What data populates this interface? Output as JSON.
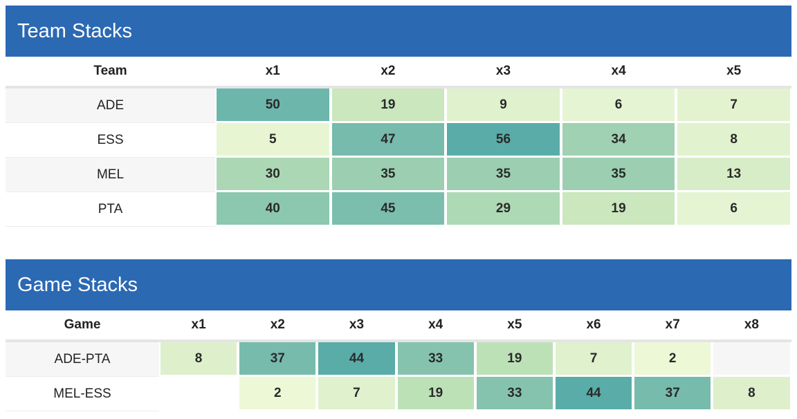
{
  "team_stacks": {
    "title": "Team Stacks",
    "first_header": "Team",
    "columns": [
      "x1",
      "x2",
      "x3",
      "x4",
      "x5"
    ],
    "rows": [
      {
        "label": "ADE",
        "values": [
          50,
          19,
          9,
          6,
          7
        ]
      },
      {
        "label": "ESS",
        "values": [
          5,
          47,
          56,
          34,
          8
        ]
      },
      {
        "label": "MEL",
        "values": [
          30,
          35,
          35,
          35,
          13
        ]
      },
      {
        "label": "PTA",
        "values": [
          40,
          45,
          29,
          19,
          6
        ]
      }
    ]
  },
  "game_stacks": {
    "title": "Game Stacks",
    "first_header": "Game",
    "columns": [
      "x1",
      "x2",
      "x3",
      "x4",
      "x5",
      "x6",
      "x7",
      "x8"
    ],
    "rows": [
      {
        "label": "ADE-PTA",
        "values": [
          8,
          37,
          44,
          33,
          19,
          7,
          2,
          null
        ]
      },
      {
        "label": "MEL-ESS",
        "values": [
          null,
          2,
          7,
          19,
          33,
          44,
          37,
          8
        ]
      }
    ]
  },
  "colors": {
    "header_bg": "#2b69b3",
    "scale_low": "#f2fadb",
    "scale_mid": "#c3e4b8",
    "scale_high": "#5aaca8"
  }
}
